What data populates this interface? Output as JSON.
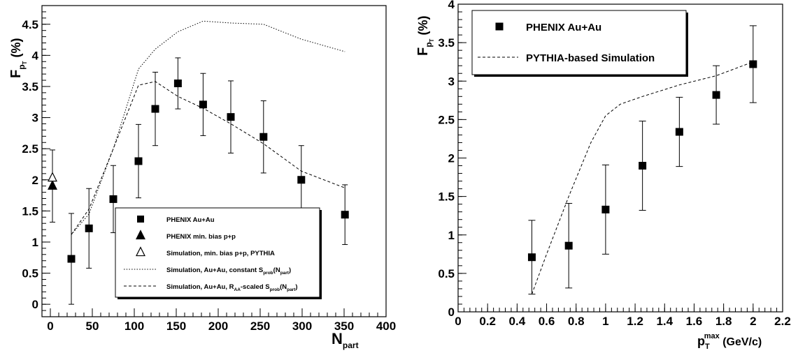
{
  "chart_data": [
    {
      "type": "scatter",
      "xlabel": {
        "main": "N",
        "sub": "part"
      },
      "ylabel": {
        "main": "F",
        "sub": "p",
        "subsub": "T",
        "unit": "(%)"
      },
      "xlim": [
        -10,
        400
      ],
      "ylim": [
        -0.2,
        4.8
      ],
      "x_ticks": [
        0,
        50,
        100,
        150,
        200,
        250,
        300,
        350,
        400
      ],
      "y_ticks": [
        0,
        0.5,
        1,
        1.5,
        2,
        2.5,
        3,
        3.5,
        4,
        4.5
      ],
      "series": [
        {
          "name": "PHENIX Au+Au",
          "marker": "square",
          "x": [
            25,
            46,
            75,
            105,
            125,
            152,
            182,
            215,
            254,
            299,
            351
          ],
          "y": [
            0.73,
            1.22,
            1.69,
            2.3,
            3.14,
            3.55,
            3.21,
            3.01,
            2.69,
            2.0,
            1.44
          ],
          "err": [
            0.73,
            0.64,
            0.54,
            0.59,
            0.59,
            0.41,
            0.5,
            0.58,
            0.58,
            0.55,
            0.48
          ]
        },
        {
          "name": "PHENIX min. bias p+p",
          "marker": "triangle",
          "x": [
            2.5
          ],
          "y": [
            1.9
          ],
          "err": [
            0.58
          ]
        },
        {
          "name": "Simulation, min. bias p+p, PYTHIA",
          "marker": "open-triangle",
          "x": [
            2.5
          ],
          "y": [
            2.03
          ],
          "err": [
            0
          ]
        },
        {
          "name": "Simulation, Au+Au, constant S",
          "name_sub": "prob",
          "name_tail": "(N",
          "name_tail_sub": "part",
          "name_end": ")",
          "style": "dotted",
          "x": [
            25,
            46,
            75,
            105,
            125,
            152,
            182,
            215,
            254,
            299,
            351
          ],
          "y": [
            1.12,
            1.45,
            2.5,
            3.78,
            4.1,
            4.38,
            4.55,
            4.52,
            4.5,
            4.26,
            4.06
          ]
        },
        {
          "name": "Simulation, Au+Au, R",
          "name_sub": "AA",
          "name_mid": "-scaled S",
          "name_mid_sub": "prob",
          "name_tail": "(N",
          "name_tail_sub": "part",
          "name_end": ")",
          "style": "dashed",
          "x": [
            25,
            46,
            75,
            105,
            125,
            152,
            182,
            215,
            254,
            299,
            351
          ],
          "y": [
            1.12,
            1.53,
            2.5,
            3.52,
            3.58,
            3.34,
            3.15,
            2.9,
            2.58,
            2.14,
            1.87
          ]
        }
      ]
    },
    {
      "type": "scatter",
      "xlabel": {
        "main": "p",
        "sub": "T",
        "sup": "max",
        "unit": "(GeV/c)"
      },
      "ylabel": {
        "main": "F",
        "sub": "p",
        "subsub": "T",
        "unit": "(%)"
      },
      "xlim": [
        0,
        2.2
      ],
      "ylim": [
        0,
        4
      ],
      "x_ticks": [
        0,
        0.2,
        0.4,
        0.6,
        0.8,
        1,
        1.2,
        1.4,
        1.6,
        1.8,
        2,
        2.2
      ],
      "y_ticks": [
        0,
        0.5,
        1,
        1.5,
        2,
        2.5,
        3,
        3.5,
        4
      ],
      "series": [
        {
          "name": "PHENIX Au+Au",
          "marker": "square",
          "x": [
            0.5,
            0.75,
            1.0,
            1.25,
            1.5,
            1.75,
            2.0
          ],
          "y": [
            0.71,
            0.86,
            1.33,
            1.9,
            2.34,
            2.82,
            3.22
          ],
          "err": [
            0.48,
            0.55,
            0.58,
            0.58,
            0.45,
            0.38,
            0.5
          ]
        },
        {
          "name": "PYTHIA-based Simulation",
          "style": "dashed",
          "x": [
            0.5,
            0.6,
            0.75,
            0.9,
            1.0,
            1.1,
            1.25,
            1.5,
            1.75,
            2.0
          ],
          "y": [
            0.23,
            0.75,
            1.5,
            2.2,
            2.55,
            2.7,
            2.8,
            2.95,
            3.07,
            3.25
          ]
        }
      ]
    }
  ]
}
